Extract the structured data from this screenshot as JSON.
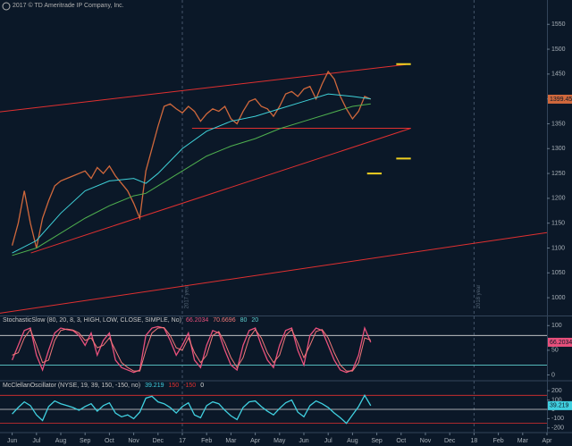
{
  "notice": "2017 © TD Ameritrade IP Company, Inc.",
  "chart_data": [
    {
      "type": "line",
      "xlim": [
        -0.5,
        22
      ],
      "ylim": [
        966,
        1599
      ],
      "yticks": [
        1000,
        1050,
        1100,
        1150,
        1200,
        1250,
        1300,
        1350,
        1400,
        1450,
        1500,
        1550
      ],
      "year_lines": [
        {
          "value": 7,
          "label": "2017 year"
        },
        {
          "value": 19,
          "label": "2018 year"
        }
      ],
      "x": [
        0,
        0.25,
        0.5,
        0.75,
        1,
        1.25,
        1.5,
        1.75,
        2,
        2.25,
        2.5,
        2.75,
        3,
        3.25,
        3.5,
        3.75,
        4,
        4.25,
        4.5,
        4.75,
        5,
        5.25,
        5.5,
        5.75,
        6,
        6.25,
        6.5,
        6.75,
        7,
        7.25,
        7.5,
        7.75,
        8,
        8.25,
        8.5,
        8.75,
        9,
        9.25,
        9.5,
        9.75,
        10,
        10.25,
        10.5,
        10.75,
        11,
        11.25,
        11.5,
        11.75,
        12,
        12.25,
        12.5,
        12.75,
        13,
        13.25,
        13.5,
        13.75,
        14,
        14.25,
        14.5,
        14.75
      ],
      "series": [
        {
          "color": "#d0683c",
          "values": [
            1105,
            1150,
            1215,
            1150,
            1100,
            1160,
            1195,
            1225,
            1235,
            1240,
            1245,
            1250,
            1255,
            1240,
            1262,
            1250,
            1265,
            1245,
            1230,
            1215,
            1190,
            1160,
            1255,
            1300,
            1345,
            1385,
            1390,
            1380,
            1372,
            1385,
            1375,
            1355,
            1370,
            1380,
            1375,
            1385,
            1360,
            1350,
            1375,
            1395,
            1400,
            1385,
            1380,
            1365,
            1385,
            1410,
            1415,
            1405,
            1420,
            1425,
            1400,
            1430,
            1455,
            1440,
            1405,
            1380,
            1360,
            1375,
            1405,
            1399.45
          ]
        },
        {
          "color": "#3fd1d8",
          "x": [
            0,
            1,
            2,
            3,
            4,
            5,
            5.5,
            6,
            7,
            8,
            9,
            10,
            11,
            12,
            13,
            14,
            14.75
          ],
          "values": [
            1090,
            1115,
            1170,
            1215,
            1235,
            1240,
            1230,
            1250,
            1300,
            1335,
            1355,
            1365,
            1380,
            1395,
            1410,
            1405,
            1400
          ]
        },
        {
          "color": "#4fb04f",
          "x": [
            0,
            1,
            2,
            3,
            4,
            5,
            5.5,
            6,
            7,
            8,
            9,
            10,
            11,
            12,
            13,
            14,
            14.75
          ],
          "values": [
            1085,
            1100,
            1130,
            1160,
            1185,
            1205,
            1210,
            1225,
            1255,
            1285,
            1305,
            1320,
            1340,
            1355,
            1370,
            1385,
            1390
          ]
        }
      ],
      "trendlines": [
        {
          "color": "#e03030",
          "x": [
            -0.5,
            16.2
          ],
          "values": [
            1374,
            1469
          ]
        },
        {
          "color": "#e03030",
          "x": [
            0.77,
            16.4
          ],
          "values": [
            1090,
            1341
          ]
        },
        {
          "color": "#e03030",
          "x": [
            7.4,
            16.4
          ],
          "values": [
            1341,
            1341
          ]
        },
        {
          "color": "#e03030",
          "x": [
            -0.5,
            22
          ],
          "values": [
            969,
            1131
          ]
        }
      ],
      "segments": [
        {
          "color": "#f0d020",
          "x": [
            15.8,
            16.4
          ],
          "value": 1470
        },
        {
          "color": "#f0d020",
          "x": [
            15.8,
            16.4
          ],
          "value": 1280
        },
        {
          "color": "#f0d020",
          "x": [
            14.6,
            15.2
          ],
          "value": 1250
        }
      ]
    },
    {
      "type": "line",
      "title": "StochasticSlow (80, 20, 8, 3, HIGH, LOW, CLOSE, SIMPLE, No)",
      "xlim": [
        -0.5,
        22
      ],
      "ylim": [
        -10,
        115
      ],
      "yticks": [
        0,
        50,
        100
      ],
      "levels": [
        {
          "value": 80,
          "color": "#d8d8d8"
        },
        {
          "value": 20,
          "color": "#5fd0d0"
        }
      ],
      "x": [
        0,
        0.25,
        0.5,
        0.75,
        1,
        1.25,
        1.5,
        1.75,
        2,
        2.25,
        2.5,
        2.75,
        3,
        3.25,
        3.5,
        3.75,
        4,
        4.25,
        4.5,
        4.75,
        5,
        5.25,
        5.5,
        5.75,
        6,
        6.25,
        6.5,
        6.75,
        7,
        7.25,
        7.5,
        7.75,
        8,
        8.25,
        8.5,
        8.75,
        9,
        9.25,
        9.5,
        9.75,
        10,
        10.25,
        10.5,
        10.75,
        11,
        11.25,
        11.5,
        11.75,
        12,
        12.25,
        12.5,
        12.75,
        13,
        13.25,
        13.5,
        13.75,
        14,
        14.25,
        14.5,
        14.75
      ],
      "series": [
        {
          "color": "#e8507c",
          "values": [
            30,
            60,
            90,
            95,
            40,
            10,
            50,
            85,
            95,
            92,
            90,
            80,
            60,
            85,
            40,
            70,
            85,
            30,
            15,
            10,
            5,
            10,
            80,
            95,
            98,
            95,
            70,
            40,
            60,
            85,
            30,
            15,
            60,
            90,
            85,
            50,
            20,
            10,
            60,
            90,
            95,
            60,
            30,
            15,
            60,
            90,
            95,
            50,
            20,
            80,
            95,
            90,
            60,
            30,
            10,
            5,
            10,
            40,
            95,
            66.2034
          ]
        },
        {
          "color": "#f07878",
          "values": [
            40,
            45,
            75,
            92,
            60,
            25,
            30,
            70,
            90,
            93,
            91,
            85,
            70,
            75,
            55,
            60,
            75,
            50,
            25,
            15,
            8,
            8,
            50,
            85,
            95,
            96,
            80,
            55,
            50,
            75,
            45,
            25,
            40,
            80,
            88,
            65,
            35,
            15,
            35,
            75,
            92,
            75,
            45,
            25,
            40,
            80,
            92,
            65,
            35,
            60,
            88,
            92,
            75,
            45,
            20,
            8,
            8,
            25,
            75,
            70.6696
          ]
        }
      ]
    },
    {
      "type": "line",
      "title": "McClellanOscillator (NYSE, 19, 39, 150, -150, no)",
      "xlim": [
        -0.5,
        22
      ],
      "ylim": [
        -240,
        297
      ],
      "yticks": [
        -200,
        -100,
        0,
        100,
        200
      ],
      "levels": [
        {
          "value": 150,
          "color": "#e03030"
        },
        {
          "value": -150,
          "color": "#e03030"
        },
        {
          "value": 0,
          "color": "#d8d8d8"
        }
      ],
      "x": [
        0,
        0.25,
        0.5,
        0.75,
        1,
        1.25,
        1.5,
        1.75,
        2,
        2.25,
        2.5,
        2.75,
        3,
        3.25,
        3.5,
        3.75,
        4,
        4.25,
        4.5,
        4.75,
        5,
        5.25,
        5.5,
        5.75,
        6,
        6.25,
        6.5,
        6.75,
        7,
        7.25,
        7.5,
        7.75,
        8,
        8.25,
        8.5,
        8.75,
        9,
        9.25,
        9.5,
        9.75,
        10,
        10.25,
        10.5,
        10.75,
        11,
        11.25,
        11.5,
        11.75,
        12,
        12.25,
        12.5,
        12.75,
        13,
        13.25,
        13.5,
        13.75,
        14,
        14.25,
        14.5,
        14.75
      ],
      "series": [
        {
          "color": "#40d0e0",
          "values": [
            -50,
            20,
            80,
            40,
            -60,
            -120,
            30,
            90,
            60,
            40,
            20,
            -10,
            30,
            60,
            -20,
            40,
            70,
            -40,
            -80,
            -60,
            -100,
            -30,
            120,
            140,
            80,
            60,
            20,
            -40,
            30,
            70,
            -60,
            -90,
            40,
            80,
            60,
            -10,
            -70,
            -110,
            20,
            80,
            90,
            30,
            -20,
            -60,
            10,
            70,
            100,
            -30,
            -80,
            40,
            90,
            60,
            20,
            -40,
            -90,
            -150,
            -60,
            30,
            150,
            39.219
          ]
        }
      ],
      "xticks": [
        {
          "value": 0,
          "label": "Jun"
        },
        {
          "value": 1,
          "label": "Jul"
        },
        {
          "value": 2,
          "label": "Aug"
        },
        {
          "value": 3,
          "label": "Sep"
        },
        {
          "value": 4,
          "label": "Oct"
        },
        {
          "value": 5,
          "label": "Nov"
        },
        {
          "value": 6,
          "label": "Dec"
        },
        {
          "value": 7,
          "label": "17"
        },
        {
          "value": 8,
          "label": "Feb"
        },
        {
          "value": 9,
          "label": "Mar"
        },
        {
          "value": 10,
          "label": "Apr"
        },
        {
          "value": 11,
          "label": "May"
        },
        {
          "value": 12,
          "label": "Jun"
        },
        {
          "value": 13,
          "label": "Jul"
        },
        {
          "value": 14,
          "label": "Aug"
        },
        {
          "value": 15,
          "label": "Sep"
        },
        {
          "value": 16,
          "label": "Oct"
        },
        {
          "value": 17,
          "label": "Nov"
        },
        {
          "value": 18,
          "label": "Dec"
        },
        {
          "value": 19,
          "label": "18"
        },
        {
          "value": 20,
          "label": "Feb"
        },
        {
          "value": 21,
          "label": "Mar"
        },
        {
          "value": 22,
          "label": "Apr"
        }
      ]
    }
  ]
}
